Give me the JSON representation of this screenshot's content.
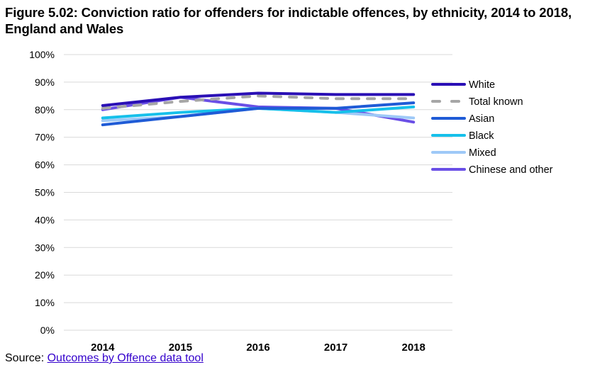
{
  "title": "Figure 5.02: Conviction ratio for offenders for indictable offences, by ethnicity, 2014 to 2018, England and Wales",
  "source": {
    "label": "Source:",
    "link_text": "Outcomes by Offence data tool"
  },
  "chart_data": {
    "type": "line",
    "title": "Figure 5.02: Conviction ratio for offenders for indictable offences, by ethnicity, 2014 to 2018, England and Wales",
    "xlabel": "",
    "ylabel": "",
    "categories": [
      "2014",
      "2015",
      "2016",
      "2017",
      "2018"
    ],
    "ylim": [
      0,
      100
    ],
    "yticks": [
      0,
      10,
      20,
      30,
      40,
      50,
      60,
      70,
      80,
      90,
      100
    ],
    "ytick_labels": [
      "0%",
      "10%",
      "20%",
      "30%",
      "40%",
      "50%",
      "60%",
      "70%",
      "80%",
      "90%",
      "100%"
    ],
    "grid": true,
    "legend_position": "right",
    "series": [
      {
        "name": "White",
        "color": "#2a0fb5",
        "dashed": false,
        "values": [
          81.5,
          84.5,
          86,
          85.5,
          85.5
        ]
      },
      {
        "name": "Total known",
        "color": "#a6a6a6",
        "dashed": true,
        "values": [
          80.5,
          83,
          85,
          84,
          84
        ]
      },
      {
        "name": "Asian",
        "color": "#1f5bd6",
        "dashed": false,
        "values": [
          74.5,
          77.5,
          80.5,
          80.5,
          82.5
        ]
      },
      {
        "name": "Black",
        "color": "#16c0ea",
        "dashed": false,
        "values": [
          77,
          79,
          80.5,
          79,
          81
        ]
      },
      {
        "name": "Mixed",
        "color": "#9ec9f7",
        "dashed": false,
        "values": [
          76,
          77.5,
          80.5,
          79,
          77
        ]
      },
      {
        "name": "Chinese and other",
        "color": "#6a4fe6",
        "dashed": false,
        "values": [
          80,
          84.5,
          81,
          80.5,
          75.5
        ]
      }
    ]
  }
}
